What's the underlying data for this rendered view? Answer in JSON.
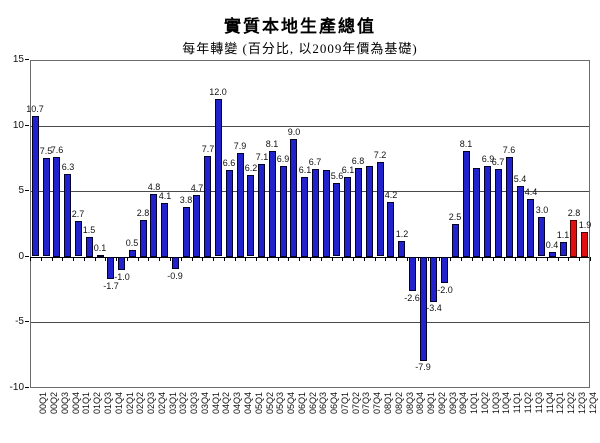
{
  "title": "實質本地生產總值",
  "subtitle": "每年轉變 (百分比, 以2009年價為基礎)",
  "chart_data": {
    "type": "bar",
    "title": "實質本地生產總值",
    "subtitle": "每年轉變 (百分比, 以2009年價為基礎)",
    "categories": [
      "00Q1",
      "00Q2",
      "00Q3",
      "00Q4",
      "01Q1",
      "01Q2",
      "01Q3",
      "01Q4",
      "02Q1",
      "02Q2",
      "02Q3",
      "02Q4",
      "03Q1",
      "03Q2",
      "03Q3",
      "03Q4",
      "04Q1",
      "04Q2",
      "04Q3",
      "04Q4",
      "05Q1",
      "05Q2",
      "05Q3",
      "05Q4",
      "06Q1",
      "06Q2",
      "06Q3",
      "06Q4",
      "07Q1",
      "07Q2",
      "07Q3",
      "07Q4",
      "08Q1",
      "08Q2",
      "08Q3",
      "08Q4",
      "09Q1",
      "09Q2",
      "09Q3",
      "09Q4",
      "10Q1",
      "10Q2",
      "10Q3",
      "10Q4",
      "11Q1",
      "11Q2",
      "11Q3",
      "11Q4",
      "12Q1",
      "12Q2",
      "12Q3",
      "12Q4"
    ],
    "values": [
      10.7,
      7.5,
      7.6,
      6.3,
      2.7,
      1.5,
      0.1,
      -1.7,
      -1.0,
      0.5,
      2.8,
      4.8,
      4.1,
      -0.9,
      3.8,
      4.7,
      7.7,
      12.0,
      6.6,
      7.9,
      6.2,
      7.1,
      8.1,
      6.9,
      9.0,
      6.1,
      6.7,
      6.6,
      5.6,
      6.1,
      6.8,
      6.9,
      7.2,
      4.2,
      1.2,
      -2.6,
      -7.9,
      -3.4,
      -2.0,
      2.5,
      8.1,
      6.8,
      6.9,
      6.7,
      7.6,
      5.4,
      4.4,
      3.0,
      0.4,
      1.1,
      2.8,
      1.9
    ],
    "labels": [
      "10.7",
      "7.5",
      "7.6",
      "6.3",
      "2.7",
      "1.5",
      "0.1",
      "-1.7",
      "-1.0",
      "0.5",
      "2.8",
      "4.8",
      "4.1",
      "-0.9",
      "3.8",
      "4.7",
      "7.7",
      "12.0",
      "6.6",
      "7.9",
      "6.2",
      "7.1",
      "8.1",
      "6.9",
      "9.0",
      "6.1",
      "6.7",
      "",
      "5.6",
      "6.1",
      "6.8",
      "",
      "7.2",
      "4.2",
      "1.2",
      "-2.6",
      "-7.9",
      "-3.4",
      "-2.0",
      "2.5",
      "8.1",
      "",
      "6.9",
      "6.7",
      "7.6",
      "5.4",
      "4.4",
      "3.0",
      "0.4",
      "1.1",
      "2.8",
      "1.9"
    ],
    "highlight_indices": [
      50,
      51
    ],
    "colors": {
      "bar": "#2222CC",
      "highlight": "#E01010"
    },
    "xlabel": "",
    "ylabel": "",
    "ylim": [
      -10,
      15
    ],
    "yticks": [
      15,
      10,
      5,
      0,
      -5,
      -10
    ],
    "grid": true,
    "legend": "none"
  }
}
